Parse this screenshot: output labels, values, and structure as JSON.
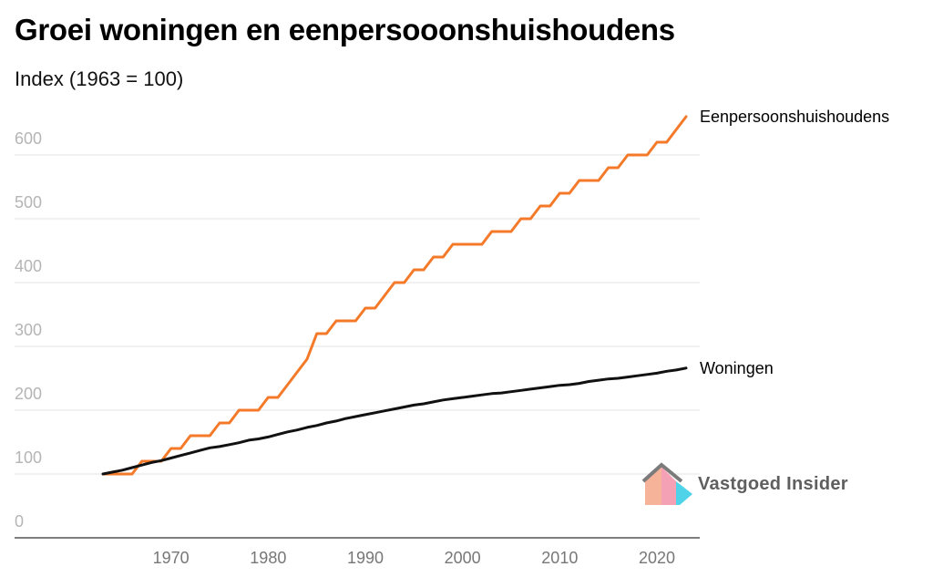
{
  "title": "Groei woningen en eenpersooonshuishoudens",
  "subtitle": "Index (1963 = 100)",
  "logo": {
    "text": "Vastgoed Insider"
  },
  "chart_data": {
    "type": "line",
    "title": "Groei woningen en eenpersooonshuishoudens",
    "subtitle": "Index (1963 = 100)",
    "xlabel": "",
    "ylabel": "",
    "xlim": [
      1963,
      2023
    ],
    "ylim": [
      0,
      660
    ],
    "x_ticks": [
      1970,
      1980,
      1990,
      2000,
      2010,
      2020
    ],
    "y_ticks": [
      0,
      100,
      200,
      300,
      400,
      500,
      600
    ],
    "grid": "horizontal",
    "legend": "line-end labels",
    "x": [
      1963,
      1964,
      1965,
      1966,
      1967,
      1968,
      1969,
      1970,
      1971,
      1972,
      1973,
      1974,
      1975,
      1976,
      1977,
      1978,
      1979,
      1980,
      1981,
      1982,
      1983,
      1984,
      1985,
      1986,
      1987,
      1988,
      1989,
      1990,
      1991,
      1992,
      1993,
      1994,
      1995,
      1996,
      1997,
      1998,
      1999,
      2000,
      2001,
      2002,
      2003,
      2004,
      2005,
      2006,
      2007,
      2008,
      2009,
      2010,
      2011,
      2012,
      2013,
      2014,
      2015,
      2016,
      2017,
      2018,
      2019,
      2020,
      2021,
      2022,
      2023
    ],
    "series": [
      {
        "name": "Eenpersoonshuishoudens",
        "color": "#f47a2a",
        "values": [
          100,
          100,
          100,
          100,
          120,
          120,
          120,
          140,
          140,
          160,
          160,
          160,
          180,
          180,
          200,
          200,
          200,
          220,
          220,
          240,
          260,
          280,
          320,
          320,
          340,
          340,
          340,
          360,
          360,
          380,
          400,
          400,
          420,
          420,
          440,
          440,
          460,
          460,
          460,
          460,
          480,
          480,
          480,
          500,
          500,
          520,
          520,
          540,
          540,
          560,
          560,
          560,
          580,
          580,
          600,
          600,
          600,
          620,
          620,
          640,
          660
        ]
      },
      {
        "name": "Woningen",
        "color": "#111111",
        "values": [
          100,
          103,
          106,
          110,
          114,
          118,
          121,
          125,
          129,
          133,
          137,
          141,
          143,
          146,
          149,
          153,
          155,
          158,
          162,
          166,
          169,
          173,
          176,
          180,
          183,
          187,
          190,
          193,
          196,
          199,
          202,
          205,
          208,
          210,
          213,
          216,
          218,
          220,
          222,
          224,
          226,
          227,
          229,
          231,
          233,
          235,
          237,
          239,
          240,
          242,
          245,
          247,
          249,
          250,
          252,
          254,
          256,
          258,
          261,
          263,
          266
        ]
      }
    ]
  }
}
